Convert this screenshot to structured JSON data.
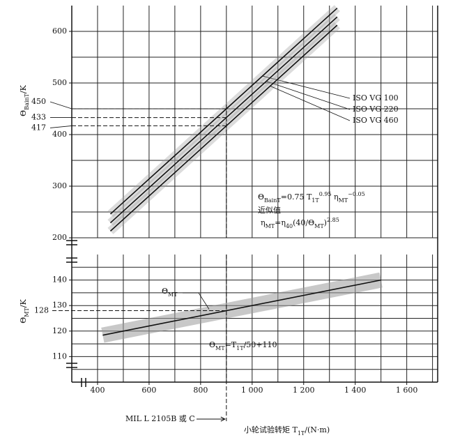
{
  "chart_data": [
    {
      "type": "line",
      "y_label": [
        {
          "t": "Θ"
        },
        {
          "sub": "BainT"
        },
        {
          "t": "/K"
        }
      ],
      "xlim": [
        300,
        1720
      ],
      "ylim": [
        200,
        650
      ],
      "yticks": [
        200,
        300,
        400,
        500,
        600
      ],
      "xgrid": [
        300,
        400,
        500,
        600,
        700,
        800,
        900,
        1000,
        1100,
        1200,
        1300,
        1400,
        1500,
        1600,
        1700
      ],
      "ygrid": [
        200,
        250,
        300,
        350,
        400,
        450,
        500,
        550,
        600
      ],
      "series": [
        {
          "name": "ISO VG 100",
          "color": "#111111",
          "band_color": "#9a9a9a",
          "x": [
            450,
            900,
            1330
          ],
          "values": [
            246,
            450,
            645
          ]
        },
        {
          "name": "ISO VG 220",
          "color": "#111111",
          "band_color": "#9a9a9a",
          "x": [
            450,
            900,
            1330
          ],
          "values": [
            229,
            433,
            628
          ]
        },
        {
          "name": "ISO VG 460",
          "color": "#111111",
          "band_color": "#9a9a9a",
          "x": [
            450,
            900,
            1330
          ],
          "values": [
            213,
            417,
            612
          ]
        }
      ],
      "reference_lines": [
        450,
        433,
        417
      ],
      "reference_x": 900,
      "formula": [
        {
          "t": "Θ"
        },
        {
          "sub": "BainT"
        },
        {
          "t": "=0.75 T"
        },
        {
          "sub": "1T"
        },
        {
          "sup": "0.95"
        },
        {
          "t": " η"
        },
        {
          "sub": "MT"
        },
        {
          "sup": "−0.05"
        }
      ],
      "note": "近似值",
      "formula2": [
        {
          "t": "η"
        },
        {
          "sub": "MT"
        },
        {
          "t": "=η"
        },
        {
          "sub": "40"
        },
        {
          "t": "(40/Θ"
        },
        {
          "sub": "MT"
        },
        {
          "t": ")"
        },
        {
          "sup": "2.85"
        }
      ]
    },
    {
      "type": "line",
      "y_label": [
        {
          "t": "Θ"
        },
        {
          "sub": "MT"
        },
        {
          "t": "/K"
        }
      ],
      "x_label": [
        {
          "t": "小轮试验转矩 T"
        },
        {
          "sub": "1T"
        },
        {
          "t": "/(N·m)"
        }
      ],
      "xlim": [
        300,
        1720
      ],
      "ylim": [
        100,
        150
      ],
      "xticks": [
        400,
        600,
        800,
        {
          "value": 1000,
          "label": "1 000"
        },
        {
          "value": 1200,
          "label": "1 200"
        },
        {
          "value": 1400,
          "label": "1 400"
        },
        {
          "value": 1600,
          "label": "1 600"
        }
      ],
      "yticks": [
        110,
        120,
        130,
        140
      ],
      "xgrid": [
        300,
        400,
        500,
        600,
        700,
        800,
        900,
        1000,
        1100,
        1200,
        1300,
        1400,
        1500,
        1600,
        1700
      ],
      "ygrid": [
        105,
        110,
        115,
        120,
        125,
        130,
        135,
        140,
        145
      ],
      "series": [
        {
          "label": [
            {
              "t": "Θ"
            },
            {
              "sub": "MT"
            }
          ],
          "color": "#111111",
          "band_color": "#9a9a9a",
          "x": [
            420,
            1500
          ],
          "values": [
            118.4,
            140
          ]
        }
      ],
      "reference_lines": [
        128
      ],
      "reference_x": 900,
      "reference_x_label": "MIL L 2105B 或 C",
      "formula": [
        {
          "t": "Θ"
        },
        {
          "sub": "MT"
        },
        {
          "t": "=T"
        },
        {
          "sub": "1T"
        },
        {
          "t": "/50+110"
        }
      ]
    }
  ]
}
